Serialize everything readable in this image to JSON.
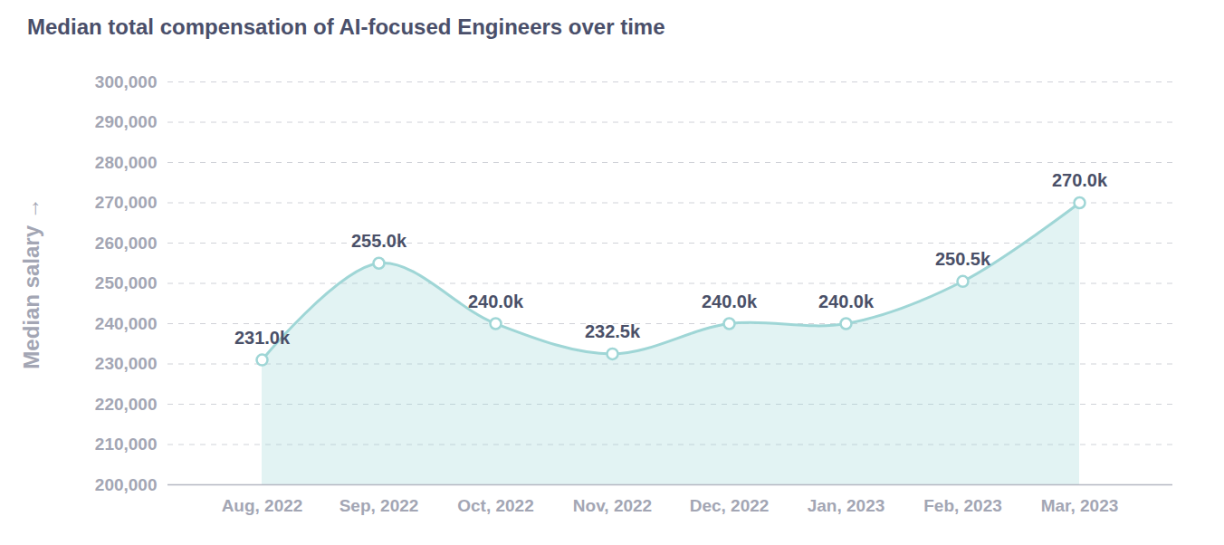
{
  "chart_data": {
    "type": "area",
    "title": "Median total compensation of AI-focused Engineers over time",
    "y_label": "Median salary",
    "categories": [
      "Aug, 2022",
      "Sep, 2022",
      "Oct, 2022",
      "Nov, 2022",
      "Dec, 2022",
      "Jan, 2023",
      "Feb, 2023",
      "Mar, 2023"
    ],
    "values": [
      231000,
      255000,
      240000,
      232500,
      240000,
      240000,
      250500,
      270000
    ],
    "value_labels": [
      "231.0k",
      "255.0k",
      "240.0k",
      "232.5k",
      "240.0k",
      "240.0k",
      "250.5k",
      "270.0k"
    ],
    "color": "#9fd6d6",
    "ylim": [
      200000,
      300000
    ],
    "yticks": [
      {
        "value": 200000,
        "label": "200,000"
      },
      {
        "value": 210000,
        "label": "210,000"
      },
      {
        "value": 220000,
        "label": "220,000"
      },
      {
        "value": 230000,
        "label": "230,000"
      },
      {
        "value": 240000,
        "label": "240,000"
      },
      {
        "value": 250000,
        "label": "250,000"
      },
      {
        "value": 260000,
        "label": "260,000"
      },
      {
        "value": 270000,
        "label": "270,000"
      },
      {
        "value": 280000,
        "label": "280,000"
      },
      {
        "value": 290000,
        "label": "290,000"
      },
      {
        "value": 300000,
        "label": "300,000"
      }
    ],
    "grid": true,
    "data_labels": true,
    "marker": "circle"
  }
}
